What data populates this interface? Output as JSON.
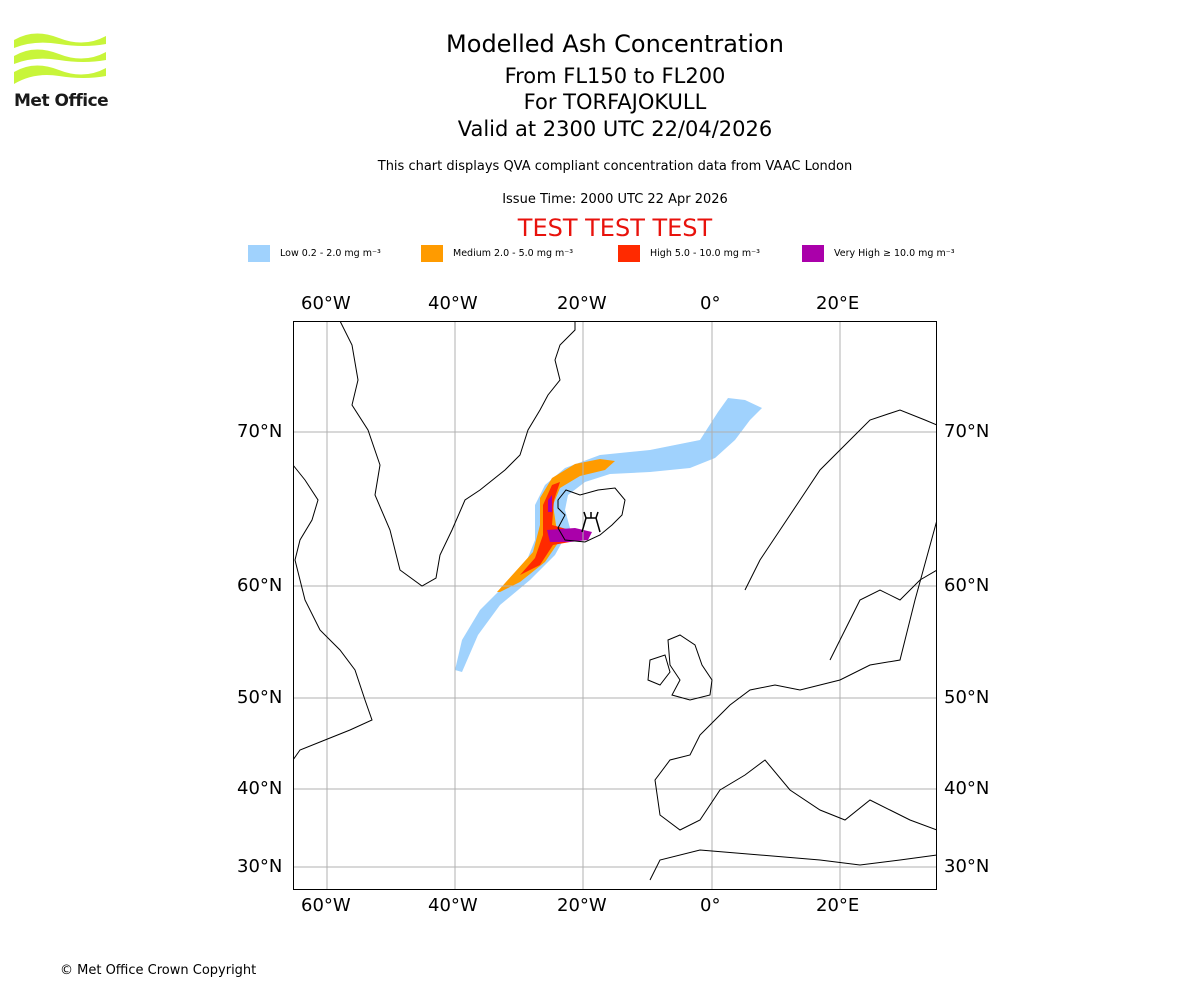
{
  "logo": {
    "text": "Met Office",
    "color": "#c8f53a"
  },
  "title": {
    "line1": "Modelled Ash Concentration",
    "line2": "From FL150 to FL200",
    "line3": "For TORFAJOKULL",
    "line4": "Valid at 2300 UTC 22/04/2026"
  },
  "description": "This chart displays QVA compliant concentration data from VAAC London",
  "issue_time": "Issue Time: 2000 UTC 22 Apr 2026",
  "test_banner": "TEST TEST TEST",
  "legend": [
    {
      "label": "Low 0.2 - 2.0 mg m⁻³",
      "color": "#a0d2fd"
    },
    {
      "label": "Medium 2.0 - 5.0 mg m⁻³",
      "color": "#ff9b00"
    },
    {
      "label": "High 5.0 - 10.0 mg m⁻³",
      "color": "#ff2a00"
    },
    {
      "label": "Very High ≥ 10.0 mg m⁻³",
      "color": "#aa00aa"
    }
  ],
  "map": {
    "lon_labels": [
      "60°W",
      "40°W",
      "20°W",
      "0°",
      "20°E"
    ],
    "lat_labels": [
      "70°N",
      "60°N",
      "50°N",
      "40°N",
      "30°N"
    ],
    "volcano_icon": "volcano-icon"
  },
  "copyright": "© Met Office Crown Copyright"
}
